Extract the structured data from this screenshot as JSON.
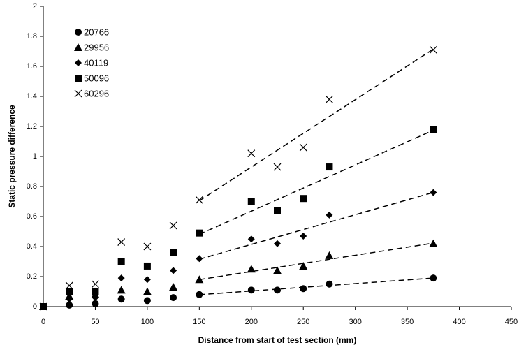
{
  "chart_data": {
    "type": "scatter",
    "xlabel": "Distance from start of test section (mm)",
    "ylabel": "Static pressure difference",
    "x": [
      0,
      25,
      50,
      75,
      100,
      125,
      150,
      200,
      225,
      250,
      275,
      375
    ],
    "series": [
      {
        "name": "20766",
        "color": "#000000",
        "marker": "circle",
        "values": [
          0,
          0.01,
          0.02,
          0.05,
          0.04,
          0.06,
          0.08,
          0.11,
          0.11,
          0.12,
          0.15,
          0.19
        ]
      },
      {
        "name": "29956",
        "color": "#000000",
        "marker": "triangle",
        "values": [
          0,
          0.07,
          0.08,
          0.11,
          0.1,
          0.13,
          0.18,
          0.25,
          0.24,
          0.27,
          0.34,
          0.42
        ]
      },
      {
        "name": "40119",
        "color": "#000000",
        "marker": "diamond",
        "values": [
          0,
          0.05,
          0.06,
          0.19,
          0.18,
          0.24,
          0.32,
          0.45,
          0.42,
          0.47,
          0.61,
          0.76
        ]
      },
      {
        "name": "50096",
        "color": "#000000",
        "marker": "square",
        "values": [
          0,
          0.1,
          0.1,
          0.3,
          0.27,
          0.36,
          0.49,
          0.7,
          0.64,
          0.72,
          0.93,
          1.18
        ]
      },
      {
        "name": "60296",
        "color": "#000000",
        "marker": "x",
        "values": [
          0,
          0.14,
          0.15,
          0.43,
          0.4,
          0.54,
          0.71,
          1.02,
          0.93,
          1.06,
          1.38,
          1.71
        ]
      }
    ],
    "xlim": [
      0,
      450
    ],
    "xticks": [
      0,
      50,
      100,
      150,
      200,
      250,
      300,
      350,
      400,
      450
    ],
    "ylim": [
      0,
      2
    ],
    "yticks": [
      0,
      0.2,
      0.4,
      0.6,
      0.8,
      1,
      1.2,
      1.4,
      1.6,
      1.8,
      2
    ],
    "trendline": true,
    "grid": false,
    "legend": "upper left"
  }
}
